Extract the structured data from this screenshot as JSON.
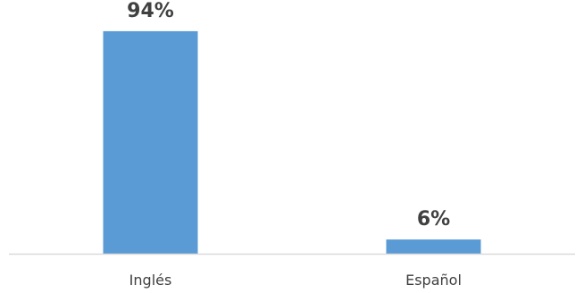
{
  "chart_data": {
    "type": "bar",
    "categories": [
      "Inglés",
      "Español"
    ],
    "values": [
      94,
      6
    ],
    "data_labels": [
      "94%",
      "6%"
    ],
    "ylim": [
      0,
      100
    ],
    "grid": false,
    "legend": "none",
    "bar_color": "#5B9BD5",
    "axis_color": "#D9D9D9",
    "label_color": "#404040"
  }
}
